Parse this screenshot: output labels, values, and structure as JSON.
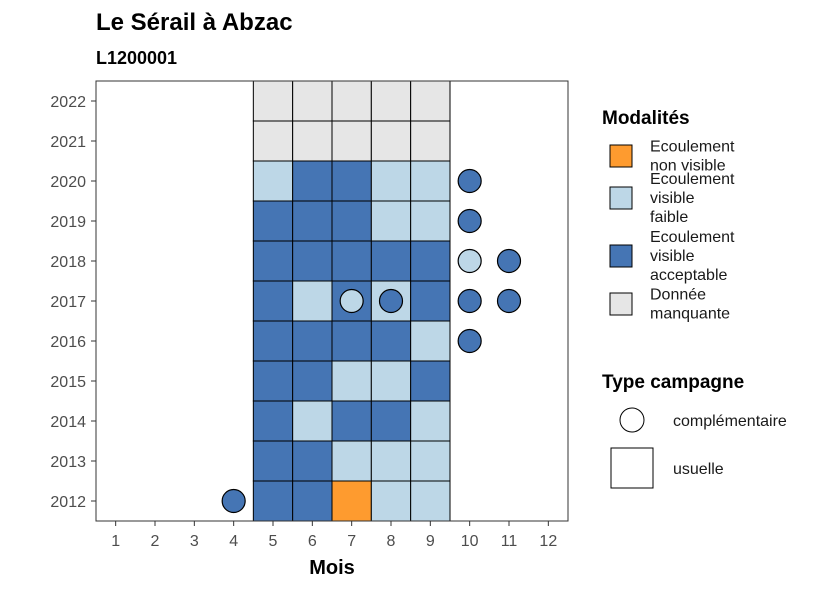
{
  "chart_data": {
    "type": "heatmap",
    "title": "Le Sérail à Abzac",
    "subtitle": "L1200001",
    "xlabel": "Mois",
    "ylabel": "",
    "x_ticks": [
      1,
      2,
      3,
      4,
      5,
      6,
      7,
      8,
      9,
      10,
      11,
      12
    ],
    "y_ticks": [
      2012,
      2013,
      2014,
      2015,
      2016,
      2017,
      2018,
      2019,
      2020,
      2021,
      2022
    ],
    "xlim": [
      0.5,
      12.5
    ],
    "ylim": [
      2011.5,
      2022.5
    ],
    "grid": false,
    "legend_position": "right",
    "colors": {
      "ecoulement_non_visible": "#FE9B2F",
      "ecoulement_visible_faible": "#BDD7E7",
      "ecoulement_visible_acceptable": "#4575B4",
      "donnee_manquante": "#E6E6E6"
    },
    "legend": {
      "modalites": {
        "title": "Modalités",
        "items": [
          {
            "key": "ecoulement_non_visible",
            "lines": [
              "Ecoulement",
              "non visible"
            ]
          },
          {
            "key": "ecoulement_visible_faible",
            "lines": [
              "Ecoulement",
              "visible",
              "faible"
            ]
          },
          {
            "key": "ecoulement_visible_acceptable",
            "lines": [
              "Ecoulement",
              "visible",
              "acceptable"
            ]
          },
          {
            "key": "donnee_manquante",
            "lines": [
              "Donnée",
              "manquante"
            ]
          }
        ]
      },
      "type_campagne": {
        "title": "Type campagne",
        "items": [
          {
            "shape": "circle",
            "label": "complémentaire"
          },
          {
            "shape": "square",
            "label": "usuelle"
          }
        ]
      }
    },
    "usuelle": [
      {
        "year": 2022,
        "month": 5,
        "modalite": "donnee_manquante"
      },
      {
        "year": 2022,
        "month": 6,
        "modalite": "donnee_manquante"
      },
      {
        "year": 2022,
        "month": 7,
        "modalite": "donnee_manquante"
      },
      {
        "year": 2022,
        "month": 8,
        "modalite": "donnee_manquante"
      },
      {
        "year": 2022,
        "month": 9,
        "modalite": "donnee_manquante"
      },
      {
        "year": 2021,
        "month": 5,
        "modalite": "donnee_manquante"
      },
      {
        "year": 2021,
        "month": 6,
        "modalite": "donnee_manquante"
      },
      {
        "year": 2021,
        "month": 7,
        "modalite": "donnee_manquante"
      },
      {
        "year": 2021,
        "month": 8,
        "modalite": "donnee_manquante"
      },
      {
        "year": 2021,
        "month": 9,
        "modalite": "donnee_manquante"
      },
      {
        "year": 2020,
        "month": 5,
        "modalite": "ecoulement_visible_faible"
      },
      {
        "year": 2020,
        "month": 6,
        "modalite": "ecoulement_visible_acceptable"
      },
      {
        "year": 2020,
        "month": 7,
        "modalite": "ecoulement_visible_acceptable"
      },
      {
        "year": 2020,
        "month": 8,
        "modalite": "ecoulement_visible_faible"
      },
      {
        "year": 2020,
        "month": 9,
        "modalite": "ecoulement_visible_faible"
      },
      {
        "year": 2019,
        "month": 5,
        "modalite": "ecoulement_visible_acceptable"
      },
      {
        "year": 2019,
        "month": 6,
        "modalite": "ecoulement_visible_acceptable"
      },
      {
        "year": 2019,
        "month": 7,
        "modalite": "ecoulement_visible_acceptable"
      },
      {
        "year": 2019,
        "month": 8,
        "modalite": "ecoulement_visible_faible"
      },
      {
        "year": 2019,
        "month": 9,
        "modalite": "ecoulement_visible_faible"
      },
      {
        "year": 2018,
        "month": 5,
        "modalite": "ecoulement_visible_acceptable"
      },
      {
        "year": 2018,
        "month": 6,
        "modalite": "ecoulement_visible_acceptable"
      },
      {
        "year": 2018,
        "month": 7,
        "modalite": "ecoulement_visible_acceptable"
      },
      {
        "year": 2018,
        "month": 8,
        "modalite": "ecoulement_visible_acceptable"
      },
      {
        "year": 2018,
        "month": 9,
        "modalite": "ecoulement_visible_acceptable"
      },
      {
        "year": 2017,
        "month": 5,
        "modalite": "ecoulement_visible_acceptable"
      },
      {
        "year": 2017,
        "month": 6,
        "modalite": "ecoulement_visible_faible"
      },
      {
        "year": 2017,
        "month": 7,
        "modalite": "ecoulement_visible_acceptable"
      },
      {
        "year": 2017,
        "month": 8,
        "modalite": "ecoulement_visible_faible"
      },
      {
        "year": 2017,
        "month": 9,
        "modalite": "ecoulement_visible_acceptable"
      },
      {
        "year": 2016,
        "month": 5,
        "modalite": "ecoulement_visible_acceptable"
      },
      {
        "year": 2016,
        "month": 6,
        "modalite": "ecoulement_visible_acceptable"
      },
      {
        "year": 2016,
        "month": 7,
        "modalite": "ecoulement_visible_acceptable"
      },
      {
        "year": 2016,
        "month": 8,
        "modalite": "ecoulement_visible_acceptable"
      },
      {
        "year": 2016,
        "month": 9,
        "modalite": "ecoulement_visible_faible"
      },
      {
        "year": 2015,
        "month": 5,
        "modalite": "ecoulement_visible_acceptable"
      },
      {
        "year": 2015,
        "month": 6,
        "modalite": "ecoulement_visible_acceptable"
      },
      {
        "year": 2015,
        "month": 7,
        "modalite": "ecoulement_visible_faible"
      },
      {
        "year": 2015,
        "month": 8,
        "modalite": "ecoulement_visible_faible"
      },
      {
        "year": 2015,
        "month": 9,
        "modalite": "ecoulement_visible_acceptable"
      },
      {
        "year": 2014,
        "month": 5,
        "modalite": "ecoulement_visible_acceptable"
      },
      {
        "year": 2014,
        "month": 6,
        "modalite": "ecoulement_visible_faible"
      },
      {
        "year": 2014,
        "month": 7,
        "modalite": "ecoulement_visible_acceptable"
      },
      {
        "year": 2014,
        "month": 8,
        "modalite": "ecoulement_visible_acceptable"
      },
      {
        "year": 2014,
        "month": 9,
        "modalite": "ecoulement_visible_faible"
      },
      {
        "year": 2013,
        "month": 5,
        "modalite": "ecoulement_visible_acceptable"
      },
      {
        "year": 2013,
        "month": 6,
        "modalite": "ecoulement_visible_acceptable"
      },
      {
        "year": 2013,
        "month": 7,
        "modalite": "ecoulement_visible_faible"
      },
      {
        "year": 2013,
        "month": 8,
        "modalite": "ecoulement_visible_faible"
      },
      {
        "year": 2013,
        "month": 9,
        "modalite": "ecoulement_visible_faible"
      },
      {
        "year": 2012,
        "month": 5,
        "modalite": "ecoulement_visible_acceptable"
      },
      {
        "year": 2012,
        "month": 6,
        "modalite": "ecoulement_visible_acceptable"
      },
      {
        "year": 2012,
        "month": 7,
        "modalite": "ecoulement_non_visible"
      },
      {
        "year": 2012,
        "month": 8,
        "modalite": "ecoulement_visible_faible"
      },
      {
        "year": 2012,
        "month": 9,
        "modalite": "ecoulement_visible_faible"
      }
    ],
    "complementaire": [
      {
        "year": 2020,
        "month": 10,
        "modalite": "ecoulement_visible_acceptable"
      },
      {
        "year": 2019,
        "month": 10,
        "modalite": "ecoulement_visible_acceptable"
      },
      {
        "year": 2018,
        "month": 10,
        "modalite": "ecoulement_visible_faible"
      },
      {
        "year": 2018,
        "month": 11,
        "modalite": "ecoulement_visible_acceptable"
      },
      {
        "year": 2017,
        "month": 7,
        "modalite": "ecoulement_visible_faible"
      },
      {
        "year": 2017,
        "month": 8,
        "modalite": "ecoulement_visible_acceptable"
      },
      {
        "year": 2017,
        "month": 10,
        "modalite": "ecoulement_visible_acceptable"
      },
      {
        "year": 2017,
        "month": 11,
        "modalite": "ecoulement_visible_acceptable"
      },
      {
        "year": 2016,
        "month": 10,
        "modalite": "ecoulement_visible_acceptable"
      },
      {
        "year": 2012,
        "month": 4,
        "modalite": "ecoulement_visible_acceptable"
      }
    ]
  }
}
